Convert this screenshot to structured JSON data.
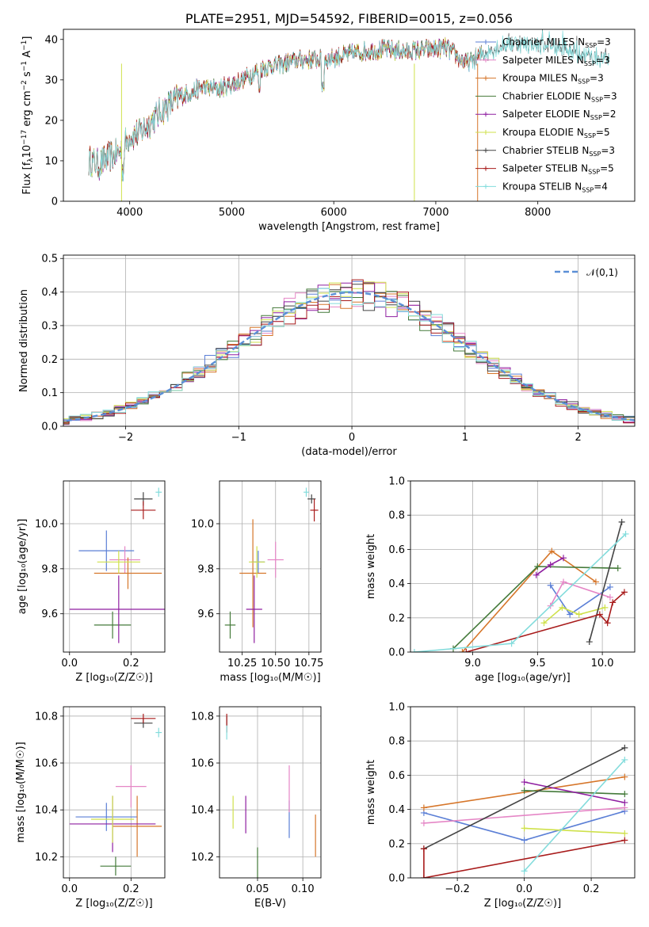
{
  "colors": [
    "#5b7fd6",
    "#e586c6",
    "#d6762a",
    "#447a3a",
    "#8f1fa1",
    "#cfe14b",
    "#444444",
    "#a81b1b",
    "#83dcdc"
  ],
  "chart_data": [
    {
      "id": "spectrum",
      "type": "line",
      "title": "PLATE=2951, MJD=54592, FIBERID=0015, z=0.056",
      "xlabel": "wavelength [Angstrom, rest frame]",
      "ylabel_parts": {
        "a": "Flux [f",
        "b": "λ",
        "c": "10",
        "d": "−17",
        "e": " erg cm",
        "f": "−2",
        "g": " s",
        "h": "−1",
        "i": " A",
        "j": "−1",
        "k": "]"
      },
      "xlim": [
        3350,
        8950
      ],
      "ylim": [
        0,
        42.5
      ],
      "xticks": [
        4000,
        5000,
        6000,
        7000,
        8000
      ],
      "yticks": [
        0,
        10,
        20,
        30,
        40
      ],
      "continuum": [
        [
          3600,
          10
        ],
        [
          3700,
          9
        ],
        [
          3800,
          11
        ],
        [
          3900,
          12
        ],
        [
          4000,
          16
        ],
        [
          4100,
          17
        ],
        [
          4300,
          22
        ],
        [
          4500,
          26
        ],
        [
          4700,
          28
        ],
        [
          4900,
          28
        ],
        [
          5100,
          30
        ],
        [
          5300,
          33
        ],
        [
          5500,
          34
        ],
        [
          5700,
          35
        ],
        [
          5900,
          35
        ],
        [
          6100,
          36
        ],
        [
          6300,
          37
        ],
        [
          6500,
          37.5
        ],
        [
          6700,
          37
        ],
        [
          6900,
          37.5
        ],
        [
          7100,
          38
        ],
        [
          7300,
          34
        ],
        [
          7500,
          37
        ],
        [
          7700,
          39
        ],
        [
          7900,
          39
        ],
        [
          8100,
          38.5
        ],
        [
          8300,
          37.5
        ],
        [
          8500,
          36
        ],
        [
          8700,
          35
        ],
        [
          8900,
          35
        ]
      ],
      "legend": [
        {
          "name": "Chabrier MILES",
          "n": "3"
        },
        {
          "name": "Salpeter MILES",
          "n": "3"
        },
        {
          "name": "Kroupa MILES",
          "n": "3"
        },
        {
          "name": "Chabrier ELODIE",
          "n": "3"
        },
        {
          "name": "Salpeter ELODIE",
          "n": "2"
        },
        {
          "name": "Kroupa ELODIE",
          "n": "5"
        },
        {
          "name": "Chabrier STELIB",
          "n": "3"
        },
        {
          "name": "Salpeter STELIB",
          "n": "5"
        },
        {
          "name": "Kroupa STELIB",
          "n": "4"
        }
      ],
      "legend_n_prefix": "N",
      "legend_n_sub": "SSP",
      "legend_placement": "top-right"
    },
    {
      "id": "residuals",
      "type": "histogram",
      "xlabel": "(data-model)/error",
      "ylabel": "Normed distribution",
      "xlim": [
        -2.55,
        2.5
      ],
      "ylim": [
        0,
        0.51
      ],
      "xticks": [
        -2,
        -1,
        0,
        1,
        2
      ],
      "xtick_labels": [
        "−2",
        "−1",
        "0",
        "1",
        "2"
      ],
      "yticks": [
        0,
        0.1,
        0.2,
        0.3,
        0.4,
        0.5
      ],
      "ytick_labels": [
        "0.0",
        "0.1",
        "0.2",
        "0.3",
        "0.4",
        "0.5"
      ],
      "bin_width": 0.1,
      "legend": {
        "dashed": "𝒩(0,1)"
      },
      "grid": true
    },
    {
      "id": "age-vs-Z",
      "type": "scatter",
      "xlabel": "Z [log₁₀(Z/Z☉)]",
      "ylabel": "age  [log₁₀(age/yr)]",
      "xlim": [
        -0.02,
        0.31
      ],
      "ylim": [
        9.43,
        10.19
      ],
      "xticks": [
        0.0,
        0.2
      ],
      "xtick_labels": [
        "0.0",
        "0.2"
      ],
      "yticks": [
        9.6,
        9.8,
        10.0
      ],
      "ytick_labels": [
        "9.6",
        "9.8",
        "10.0"
      ],
      "points": [
        {
          "x": 0.12,
          "y": 9.88,
          "xerr": 0.09,
          "yerr": 0.09
        },
        {
          "x": 0.18,
          "y": 9.84,
          "xerr": 0.05,
          "yerr": 0.06
        },
        {
          "x": 0.19,
          "y": 9.78,
          "xerr": 0.11,
          "yerr": 0.07
        },
        {
          "x": 0.14,
          "y": 9.55,
          "xerr": 0.06,
          "yerr": 0.06
        },
        {
          "x": 0.16,
          "y": 9.62,
          "xerr": 0.16,
          "yerr": 0.15
        },
        {
          "x": 0.16,
          "y": 9.83,
          "xerr": 0.07,
          "yerr": 0.05
        },
        {
          "x": 0.24,
          "y": 10.11,
          "xerr": 0.03,
          "yerr": 0.03
        },
        {
          "x": 0.24,
          "y": 10.06,
          "xerr": 0.04,
          "yerr": 0.04
        },
        {
          "x": 0.29,
          "y": 10.14,
          "xerr": 0.01,
          "yerr": 0.02
        }
      ]
    },
    {
      "id": "age-vs-mass",
      "type": "scatter",
      "xlabel": "mass [log₁₀(M/M☉)]",
      "ylabel": "",
      "xlim": [
        10.08,
        10.84
      ],
      "ylim": [
        9.43,
        10.19
      ],
      "xticks": [
        10.25,
        10.5,
        10.75
      ],
      "xtick_labels": [
        "10.25",
        "10.50",
        "10.75"
      ],
      "yticks": [
        9.6,
        9.8,
        10.0
      ],
      "ytick_labels": [
        "9.6",
        "9.8",
        "10.0"
      ],
      "points": [
        {
          "x": 10.37,
          "y": 9.83,
          "xerr": 0.05,
          "yerr": 0.05
        },
        {
          "x": 10.5,
          "y": 9.84,
          "xerr": 0.06,
          "yerr": 0.08
        },
        {
          "x": 10.33,
          "y": 9.78,
          "xerr": 0.1,
          "yerr": 0.24
        },
        {
          "x": 10.16,
          "y": 9.55,
          "xerr": 0.04,
          "yerr": 0.06
        },
        {
          "x": 10.34,
          "y": 9.62,
          "xerr": 0.06,
          "yerr": 0.15
        },
        {
          "x": 10.36,
          "y": 9.83,
          "xerr": 0.06,
          "yerr": 0.07
        },
        {
          "x": 10.77,
          "y": 10.11,
          "xerr": 0.03,
          "yerr": 0.02
        },
        {
          "x": 10.79,
          "y": 10.06,
          "xerr": 0.03,
          "yerr": 0.05
        },
        {
          "x": 10.73,
          "y": 10.14,
          "xerr": 0.02,
          "yerr": 0.02
        }
      ]
    },
    {
      "id": "weight-vs-age",
      "type": "line",
      "xlabel": "age  [log₁₀(age/yr)]",
      "ylabel": "mass weight",
      "xlim": [
        8.52,
        10.25
      ],
      "ylim": [
        0,
        1
      ],
      "xticks": [
        9.0,
        9.5,
        10.0
      ],
      "xtick_labels": [
        "9.0",
        "9.5",
        "10.0"
      ],
      "yticks": [
        0,
        0.2,
        0.4,
        0.6,
        0.8,
        1.0
      ],
      "ytick_labels": [
        "0.0",
        "0.2",
        "0.4",
        "0.6",
        "0.8",
        "1.0"
      ],
      "series": [
        {
          "x": [
            9.6,
            9.75,
            10.06
          ],
          "y": [
            0.39,
            0.22,
            0.38
          ]
        },
        {
          "x": [
            9.6,
            9.7,
            10.06
          ],
          "y": [
            0.27,
            0.41,
            0.32
          ]
        },
        {
          "x": [
            8.92,
            9.61,
            9.95
          ],
          "y": [
            0.0,
            0.59,
            0.41
          ]
        },
        {
          "x": [
            8.85,
            9.5,
            10.12
          ],
          "y": [
            0.02,
            0.5,
            0.49
          ]
        },
        {
          "x": [
            9.49,
            9.6,
            9.7
          ],
          "y": [
            0.45,
            0.51,
            0.55
          ]
        },
        {
          "x": [
            9.55,
            9.69,
            9.82,
            10.02
          ],
          "y": [
            0.17,
            0.26,
            0.22,
            0.26
          ]
        },
        {
          "x": [
            9.9,
            10.15
          ],
          "y": [
            0.06,
            0.76
          ]
        },
        {
          "x": [
            8.95,
            9.98,
            10.04,
            10.08,
            10.17
          ],
          "y": [
            0.0,
            0.22,
            0.17,
            0.29,
            0.35
          ]
        },
        {
          "x": [
            8.55,
            9.3,
            10.18
          ],
          "y": [
            0.0,
            0.05,
            0.69
          ]
        }
      ]
    },
    {
      "id": "mass-vs-Z",
      "type": "scatter",
      "xlabel": "Z [log₁₀(Z/Z☉)]",
      "ylabel": "mass [log₁₀(M/M☉)]",
      "xlim": [
        -0.02,
        0.31
      ],
      "ylim": [
        10.11,
        10.84
      ],
      "xticks": [
        0.0,
        0.2
      ],
      "xtick_labels": [
        "0.0",
        "0.2"
      ],
      "yticks": [
        10.2,
        10.4,
        10.6,
        10.8
      ],
      "ytick_labels": [
        "10.2",
        "10.4",
        "10.6",
        "10.8"
      ],
      "points": [
        {
          "x": 0.12,
          "y": 10.37,
          "xerr": 0.1,
          "yerr": 0.06
        },
        {
          "x": 0.2,
          "y": 10.5,
          "xerr": 0.05,
          "yerr": 0.09
        },
        {
          "x": 0.22,
          "y": 10.33,
          "xerr": 0.08,
          "yerr": 0.13
        },
        {
          "x": 0.15,
          "y": 10.16,
          "xerr": 0.05,
          "yerr": 0.04
        },
        {
          "x": 0.14,
          "y": 10.34,
          "xerr": 0.14,
          "yerr": 0.12
        },
        {
          "x": 0.14,
          "y": 10.36,
          "xerr": 0.07,
          "yerr": 0.1
        },
        {
          "x": 0.24,
          "y": 10.77,
          "xerr": 0.03,
          "yerr": 0.02
        },
        {
          "x": 0.24,
          "y": 10.79,
          "xerr": 0.04,
          "yerr": 0.02
        },
        {
          "x": 0.29,
          "y": 10.73,
          "xerr": 0.01,
          "yerr": 0.02
        }
      ]
    },
    {
      "id": "mass-vs-ebv",
      "type": "scatter",
      "xlabel": "E(B-V)",
      "ylabel": "",
      "xlim": [
        0.008,
        0.12
      ],
      "ylim": [
        10.11,
        10.84
      ],
      "xticks": [
        0.05,
        0.1
      ],
      "xtick_labels": [
        "0.05",
        "0.10"
      ],
      "yticks": [
        10.2,
        10.4,
        10.6,
        10.8
      ],
      "ytick_labels": [
        "10.2",
        "10.4",
        "10.6",
        "10.8"
      ],
      "points": [
        {
          "x": 0.085,
          "y": 10.36,
          "xerr": 0,
          "yerr": 0.08
        },
        {
          "x": 0.085,
          "y": 10.49,
          "xerr": 0,
          "yerr": 0.1
        },
        {
          "x": 0.114,
          "y": 10.29,
          "xerr": 0,
          "yerr": 0.09
        },
        {
          "x": 0.05,
          "y": 10.16,
          "xerr": 0,
          "yerr": 0.08
        },
        {
          "x": 0.037,
          "y": 10.38,
          "xerr": 0,
          "yerr": 0.08
        },
        {
          "x": 0.023,
          "y": 10.39,
          "xerr": 0,
          "yerr": 0.07
        },
        {
          "x": 0.016,
          "y": 10.78,
          "xerr": 0,
          "yerr": 0.02
        },
        {
          "x": 0.016,
          "y": 10.77,
          "xerr": 0,
          "yerr": 0.04
        },
        {
          "x": 0.016,
          "y": 10.73,
          "xerr": 0,
          "yerr": 0.03
        }
      ]
    },
    {
      "id": "weight-vs-Z",
      "type": "line",
      "xlabel": "Z [log₁₀(Z/Z☉)]",
      "ylabel": "mass weight",
      "xlim": [
        -0.34,
        0.33
      ],
      "ylim": [
        0,
        1
      ],
      "xticks": [
        -0.2,
        0.0,
        0.2
      ],
      "xtick_labels": [
        "−0.2",
        "0.0",
        "0.2"
      ],
      "yticks": [
        0,
        0.2,
        0.4,
        0.6,
        0.8,
        1.0
      ],
      "ytick_labels": [
        "0.0",
        "0.2",
        "0.4",
        "0.6",
        "0.8",
        "1.0"
      ],
      "series": [
        {
          "x": [
            -0.3,
            0.0,
            0.3
          ],
          "y": [
            0.38,
            0.22,
            0.39
          ]
        },
        {
          "x": [
            -0.3,
            0.3
          ],
          "y": [
            0.32,
            0.41
          ]
        },
        {
          "x": [
            -0.3,
            0.3
          ],
          "y": [
            0.41,
            0.59
          ]
        },
        {
          "x": [
            0.0,
            0.3
          ],
          "y": [
            0.51,
            0.49
          ]
        },
        {
          "x": [
            0.0,
            0.3
          ],
          "y": [
            0.56,
            0.44
          ]
        },
        {
          "x": [
            0.0,
            0.3
          ],
          "y": [
            0.29,
            0.26
          ]
        },
        {
          "x": [
            -0.3,
            0.3
          ],
          "y": [
            0.17,
            0.76
          ]
        },
        {
          "x": [
            -0.3,
            -0.3,
            0.3
          ],
          "y": [
            0.17,
            0.0,
            0.22
          ]
        },
        {
          "x": [
            0.0,
            0.3
          ],
          "y": [
            0.04,
            0.69
          ]
        }
      ]
    }
  ]
}
